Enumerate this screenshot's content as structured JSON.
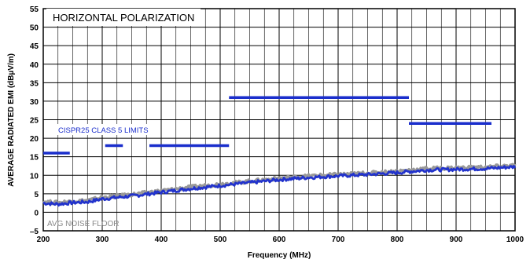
{
  "chart_data": {
    "type": "line",
    "title": "HORIZONTAL POLARIZATION",
    "xlabel": "Frequency (MHz)",
    "ylabel": "AVERAGE RADIATED EMI (dBµV/m)",
    "xlim": [
      200,
      1000
    ],
    "ylim": [
      -5,
      55
    ],
    "x_ticks": [
      "200",
      "300",
      "400",
      "500",
      "600",
      "700",
      "800",
      "900",
      "1000"
    ],
    "y_ticks": [
      "55",
      "50",
      "45",
      "40",
      "35",
      "30",
      "25",
      "20",
      "15",
      "10",
      "5",
      "0",
      "–5"
    ],
    "grid": true,
    "annotations": {
      "limits_label": "CISPR25 CLASS 5 LIMITS",
      "noise_label": "AVG NOISE FLOOR"
    },
    "limit_segments": [
      {
        "x": [
          200,
          245
        ],
        "y": 16
      },
      {
        "x": [
          305,
          335
        ],
        "y": 18
      },
      {
        "x": [
          380,
          515
        ],
        "y": 18
      },
      {
        "x": [
          515,
          820
        ],
        "y": 31
      },
      {
        "x": [
          820,
          960
        ],
        "y": 24
      }
    ],
    "series": [
      {
        "name": "",
        "color": "#2233cc",
        "x": [
          200,
          225,
          250,
          275,
          300,
          350,
          400,
          450,
          500,
          550,
          600,
          650,
          700,
          725,
          750,
          800,
          850,
          900,
          950,
          1000
        ],
        "y": [
          2.5,
          2.2,
          2.6,
          2.8,
          3.6,
          4.4,
          5.4,
          6.4,
          7.2,
          8.0,
          8.8,
          9.4,
          9.8,
          10.0,
          10.2,
          10.7,
          11.4,
          11.6,
          11.8,
          12.3
        ]
      },
      {
        "name": "",
        "color": "#999999",
        "x": [
          200,
          225,
          250,
          275,
          300,
          350,
          400,
          450,
          500,
          550,
          600,
          650,
          700,
          725,
          750,
          800,
          850,
          900,
          950,
          1000
        ],
        "y": [
          2.9,
          2.6,
          3.0,
          3.2,
          4.0,
          4.8,
          5.8,
          6.8,
          7.6,
          8.4,
          9.2,
          9.8,
          10.2,
          10.4,
          10.6,
          11.1,
          11.8,
          12.0,
          12.2,
          12.7
        ]
      }
    ],
    "colors": {
      "limits": "#1a2ecc",
      "limits_label": "#1a2ecc",
      "noise_label": "#888888",
      "grid": "#000000"
    }
  }
}
